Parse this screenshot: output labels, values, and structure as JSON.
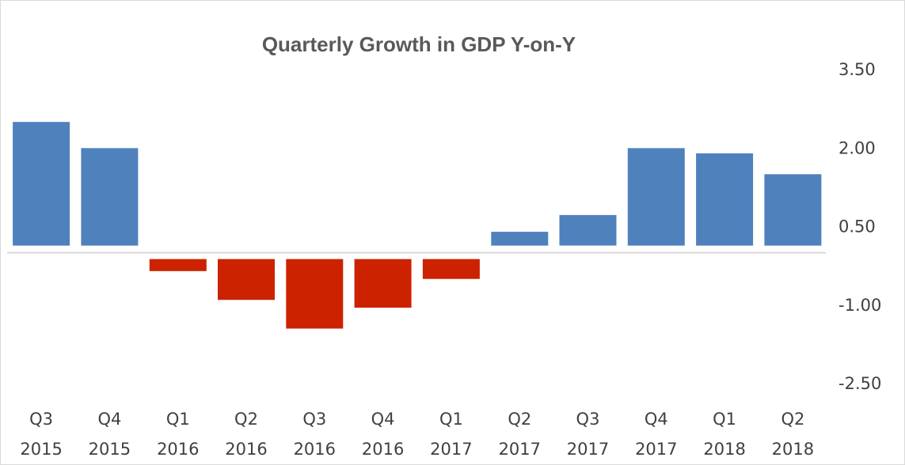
{
  "chart_data": {
    "type": "bar",
    "title": "Quarterly Growth in GDP Y-on-Y",
    "xlabel": "",
    "ylabel": "",
    "categories": [
      "Q3 2015",
      "Q4 2015",
      "Q1 2016",
      "Q2 2016",
      "Q3 2016",
      "Q4 2016",
      "Q1 2017",
      "Q2 2017",
      "Q3 2017",
      "Q4 2017",
      "Q1 2018",
      "Q2 2018"
    ],
    "category_lines": [
      [
        "Q3",
        "2015"
      ],
      [
        "Q4",
        "2015"
      ],
      [
        "Q1",
        "2016"
      ],
      [
        "Q2",
        "2016"
      ],
      [
        "Q3",
        "2016"
      ],
      [
        "Q4",
        "2016"
      ],
      [
        "Q1",
        "2017"
      ],
      [
        "Q2",
        "2017"
      ],
      [
        "Q3",
        "2017"
      ],
      [
        "Q4",
        "2017"
      ],
      [
        "Q1",
        "2018"
      ],
      [
        "Q2",
        "2018"
      ]
    ],
    "values": [
      2.5,
      2.0,
      -0.35,
      -0.9,
      -1.45,
      -1.05,
      -0.5,
      0.4,
      0.72,
      2.0,
      1.9,
      1.5
    ],
    "ylim": [
      -2.5,
      3.5
    ],
    "yticks": [
      "3.50",
      "2.00",
      "0.50",
      "-1.00",
      "-2.50"
    ],
    "ytick_values": [
      3.5,
      2.0,
      0.5,
      -1.0,
      -2.5
    ],
    "axis_position": "right",
    "grid": false,
    "legend": "none",
    "colors": {
      "positive": "#4f81bd",
      "negative": "#cc2200",
      "axis": "#d9d9d9",
      "text": "#404040",
      "title": "#595959"
    }
  }
}
